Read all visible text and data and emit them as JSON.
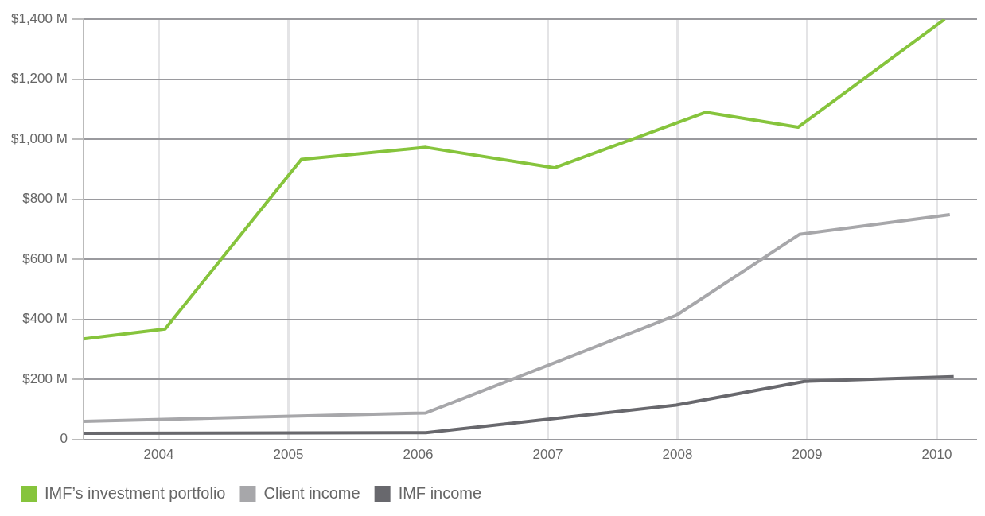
{
  "chart_data": {
    "type": "line",
    "xlim": [
      2003.42,
      2010.31
    ],
    "xticks": [
      2004,
      2005,
      2006,
      2007,
      2008,
      2009,
      2010
    ],
    "ylim": [
      0,
      1400
    ],
    "yticks": [
      {
        "value": 0,
        "label": "0"
      },
      {
        "value": 200,
        "label": "$200 M"
      },
      {
        "value": 400,
        "label": "$400 M"
      },
      {
        "value": 600,
        "label": "$600 M"
      },
      {
        "value": 800,
        "label": "$800 M"
      },
      {
        "value": 1000,
        "label": "$1,000 M"
      },
      {
        "value": 1200,
        "label": "$1,200 M"
      },
      {
        "value": 1400,
        "label": "$1,400 M"
      }
    ],
    "grid": true,
    "legend": "bottom left",
    "marker": "none",
    "line_style": "solid",
    "series": [
      {
        "name": "IMF’s investment portfolio",
        "color": "#86c43c",
        "x": [
          2003.42,
          2004.05,
          2005.1,
          2006.06,
          2007.05,
          2008.22,
          2008.93,
          2010.06
        ],
        "values": [
          335,
          368,
          933,
          973,
          905,
          1090,
          1040,
          1400
        ]
      },
      {
        "name": "Client income",
        "color": "#a7a7aa",
        "x": [
          2003.42,
          2006.06,
          2007.99,
          2008.94,
          2010.1
        ],
        "values": [
          60,
          88,
          413,
          683,
          749
        ]
      },
      {
        "name": "IMF income",
        "color": "#68686d",
        "x": [
          2003.42,
          2006.06,
          2007.99,
          2008.98,
          2010.13
        ],
        "values": [
          20,
          22,
          114,
          193,
          209
        ]
      }
    ]
  }
}
